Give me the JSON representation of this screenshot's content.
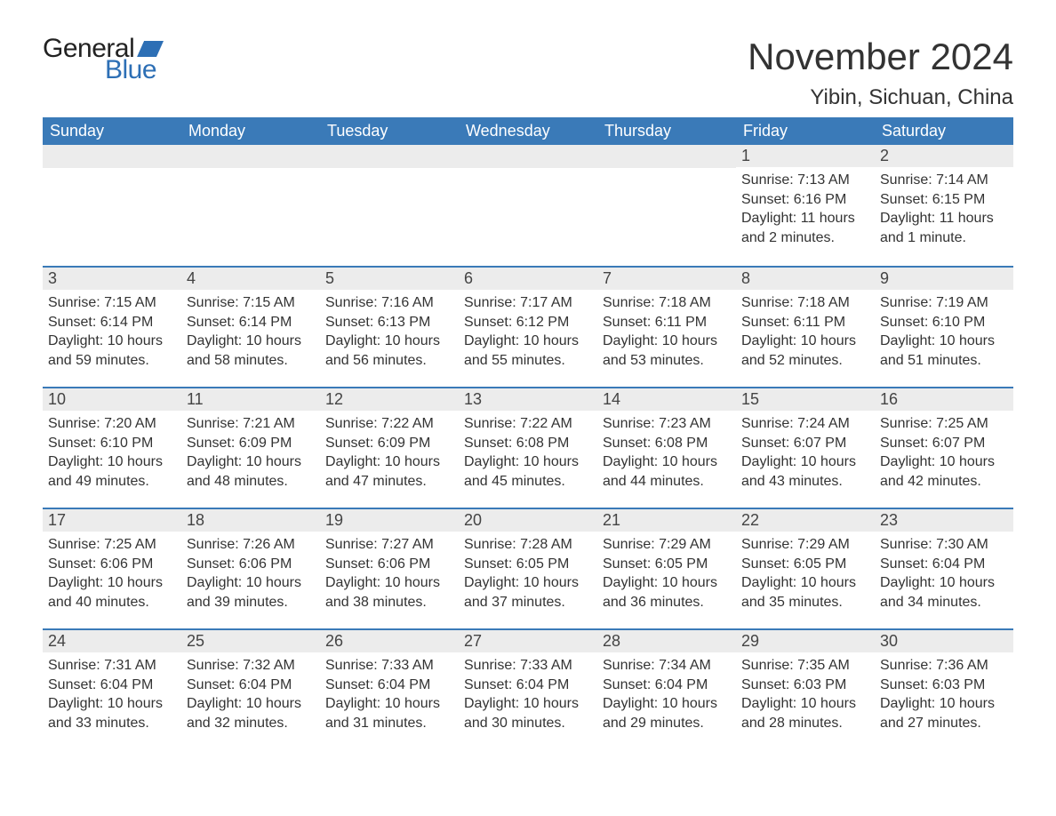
{
  "logo": {
    "text1": "General",
    "text2": "Blue",
    "flag_color": "#2d6fb5"
  },
  "title": "November 2024",
  "location": "Yibin, Sichuan, China",
  "colors": {
    "header_bg": "#3a7ab8",
    "header_text": "#ffffff",
    "row_divider": "#3a7ab8",
    "daynum_bg": "#ececec",
    "body_text": "#333333",
    "page_bg": "#ffffff"
  },
  "weekdays": [
    "Sunday",
    "Monday",
    "Tuesday",
    "Wednesday",
    "Thursday",
    "Friday",
    "Saturday"
  ],
  "weeks": [
    [
      null,
      null,
      null,
      null,
      null,
      {
        "n": "1",
        "sunrise": "Sunrise: 7:13 AM",
        "sunset": "Sunset: 6:16 PM",
        "daylight": "Daylight: 11 hours and 2 minutes."
      },
      {
        "n": "2",
        "sunrise": "Sunrise: 7:14 AM",
        "sunset": "Sunset: 6:15 PM",
        "daylight": "Daylight: 11 hours and 1 minute."
      }
    ],
    [
      {
        "n": "3",
        "sunrise": "Sunrise: 7:15 AM",
        "sunset": "Sunset: 6:14 PM",
        "daylight": "Daylight: 10 hours and 59 minutes."
      },
      {
        "n": "4",
        "sunrise": "Sunrise: 7:15 AM",
        "sunset": "Sunset: 6:14 PM",
        "daylight": "Daylight: 10 hours and 58 minutes."
      },
      {
        "n": "5",
        "sunrise": "Sunrise: 7:16 AM",
        "sunset": "Sunset: 6:13 PM",
        "daylight": "Daylight: 10 hours and 56 minutes."
      },
      {
        "n": "6",
        "sunrise": "Sunrise: 7:17 AM",
        "sunset": "Sunset: 6:12 PM",
        "daylight": "Daylight: 10 hours and 55 minutes."
      },
      {
        "n": "7",
        "sunrise": "Sunrise: 7:18 AM",
        "sunset": "Sunset: 6:11 PM",
        "daylight": "Daylight: 10 hours and 53 minutes."
      },
      {
        "n": "8",
        "sunrise": "Sunrise: 7:18 AM",
        "sunset": "Sunset: 6:11 PM",
        "daylight": "Daylight: 10 hours and 52 minutes."
      },
      {
        "n": "9",
        "sunrise": "Sunrise: 7:19 AM",
        "sunset": "Sunset: 6:10 PM",
        "daylight": "Daylight: 10 hours and 51 minutes."
      }
    ],
    [
      {
        "n": "10",
        "sunrise": "Sunrise: 7:20 AM",
        "sunset": "Sunset: 6:10 PM",
        "daylight": "Daylight: 10 hours and 49 minutes."
      },
      {
        "n": "11",
        "sunrise": "Sunrise: 7:21 AM",
        "sunset": "Sunset: 6:09 PM",
        "daylight": "Daylight: 10 hours and 48 minutes."
      },
      {
        "n": "12",
        "sunrise": "Sunrise: 7:22 AM",
        "sunset": "Sunset: 6:09 PM",
        "daylight": "Daylight: 10 hours and 47 minutes."
      },
      {
        "n": "13",
        "sunrise": "Sunrise: 7:22 AM",
        "sunset": "Sunset: 6:08 PM",
        "daylight": "Daylight: 10 hours and 45 minutes."
      },
      {
        "n": "14",
        "sunrise": "Sunrise: 7:23 AM",
        "sunset": "Sunset: 6:08 PM",
        "daylight": "Daylight: 10 hours and 44 minutes."
      },
      {
        "n": "15",
        "sunrise": "Sunrise: 7:24 AM",
        "sunset": "Sunset: 6:07 PM",
        "daylight": "Daylight: 10 hours and 43 minutes."
      },
      {
        "n": "16",
        "sunrise": "Sunrise: 7:25 AM",
        "sunset": "Sunset: 6:07 PM",
        "daylight": "Daylight: 10 hours and 42 minutes."
      }
    ],
    [
      {
        "n": "17",
        "sunrise": "Sunrise: 7:25 AM",
        "sunset": "Sunset: 6:06 PM",
        "daylight": "Daylight: 10 hours and 40 minutes."
      },
      {
        "n": "18",
        "sunrise": "Sunrise: 7:26 AM",
        "sunset": "Sunset: 6:06 PM",
        "daylight": "Daylight: 10 hours and 39 minutes."
      },
      {
        "n": "19",
        "sunrise": "Sunrise: 7:27 AM",
        "sunset": "Sunset: 6:06 PM",
        "daylight": "Daylight: 10 hours and 38 minutes."
      },
      {
        "n": "20",
        "sunrise": "Sunrise: 7:28 AM",
        "sunset": "Sunset: 6:05 PM",
        "daylight": "Daylight: 10 hours and 37 minutes."
      },
      {
        "n": "21",
        "sunrise": "Sunrise: 7:29 AM",
        "sunset": "Sunset: 6:05 PM",
        "daylight": "Daylight: 10 hours and 36 minutes."
      },
      {
        "n": "22",
        "sunrise": "Sunrise: 7:29 AM",
        "sunset": "Sunset: 6:05 PM",
        "daylight": "Daylight: 10 hours and 35 minutes."
      },
      {
        "n": "23",
        "sunrise": "Sunrise: 7:30 AM",
        "sunset": "Sunset: 6:04 PM",
        "daylight": "Daylight: 10 hours and 34 minutes."
      }
    ],
    [
      {
        "n": "24",
        "sunrise": "Sunrise: 7:31 AM",
        "sunset": "Sunset: 6:04 PM",
        "daylight": "Daylight: 10 hours and 33 minutes."
      },
      {
        "n": "25",
        "sunrise": "Sunrise: 7:32 AM",
        "sunset": "Sunset: 6:04 PM",
        "daylight": "Daylight: 10 hours and 32 minutes."
      },
      {
        "n": "26",
        "sunrise": "Sunrise: 7:33 AM",
        "sunset": "Sunset: 6:04 PM",
        "daylight": "Daylight: 10 hours and 31 minutes."
      },
      {
        "n": "27",
        "sunrise": "Sunrise: 7:33 AM",
        "sunset": "Sunset: 6:04 PM",
        "daylight": "Daylight: 10 hours and 30 minutes."
      },
      {
        "n": "28",
        "sunrise": "Sunrise: 7:34 AM",
        "sunset": "Sunset: 6:04 PM",
        "daylight": "Daylight: 10 hours and 29 minutes."
      },
      {
        "n": "29",
        "sunrise": "Sunrise: 7:35 AM",
        "sunset": "Sunset: 6:03 PM",
        "daylight": "Daylight: 10 hours and 28 minutes."
      },
      {
        "n": "30",
        "sunrise": "Sunrise: 7:36 AM",
        "sunset": "Sunset: 6:03 PM",
        "daylight": "Daylight: 10 hours and 27 minutes."
      }
    ]
  ]
}
